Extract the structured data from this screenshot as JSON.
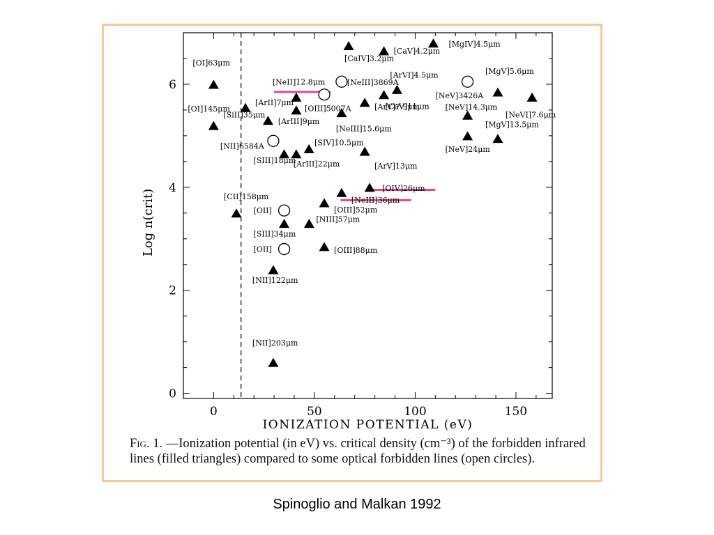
{
  "figure_label": "Fig. 1.",
  "caption": "—Ionization potential (in eV) vs. critical density (cm⁻³) of the forbidden infrared lines (filled triangles) compared to some optical forbidden lines (open circles).",
  "citation": "Spinoglio and Malkan 1992",
  "colors": {
    "frame": "#f5c99a",
    "highlight": "#e0498a",
    "marker": "#000000"
  },
  "chart_data": {
    "type": "scatter",
    "xlabel": "IONIZATION POTENTIAL (eV)",
    "ylabel": "Log n(crit)",
    "xlim": [
      -15,
      168
    ],
    "ylim": [
      -0.1,
      7.0
    ],
    "xticks": [
      0,
      50,
      100,
      150
    ],
    "yticks": [
      0,
      2,
      4,
      6
    ],
    "vline": 13.6,
    "series": [
      {
        "name": "filled triangles",
        "marker": "triangle",
        "points": [
          {
            "label": "[OI]63μm",
            "x": 0,
            "y": 6.0
          },
          {
            "label": "[OI]145μm",
            "x": 0,
            "y": 5.2
          },
          {
            "label": "[CII]158μm",
            "x": 11.3,
            "y": 3.5
          },
          {
            "label": "[ArII]7μm",
            "x": 15.8,
            "y": 5.55
          },
          {
            "label": "[SiII]35μm",
            "x": 27,
            "y": 5.3
          },
          {
            "label": "[NII]122μm",
            "x": 29.6,
            "y": 2.4
          },
          {
            "label": "[NII]203μm",
            "x": 29.6,
            "y": 0.6
          },
          {
            "label": "[SIII]34μm",
            "x": 35,
            "y": 3.3
          },
          {
            "label": "[SIII]18μm",
            "x": 35,
            "y": 4.65
          },
          {
            "label": "[NeII]12.8μm",
            "x": 41,
            "y": 5.75
          },
          {
            "label": "[ArIII]9μm",
            "x": 41,
            "y": 5.5
          },
          {
            "label": "[ArIII]22μm",
            "x": 41,
            "y": 4.65
          },
          {
            "label": "[NIII]57μm",
            "x": 47.4,
            "y": 3.3
          },
          {
            "label": "[SIV]10.5μm",
            "x": 47.3,
            "y": 4.75
          },
          {
            "label": "[OIII]52μm",
            "x": 54.9,
            "y": 3.7
          },
          {
            "label": "[OIII]88μm",
            "x": 54.9,
            "y": 2.85
          },
          {
            "label": "[NeIII]36μm",
            "x": 63.5,
            "y": 3.9
          },
          {
            "label": "[NeIII]15.6μm",
            "x": 63.5,
            "y": 5.45
          },
          {
            "label": "[CaIV]3.2μm",
            "x": 67,
            "y": 6.75
          },
          {
            "label": "[ArV]7.9μm",
            "x": 75,
            "y": 5.65
          },
          {
            "label": "[ArV]13μm",
            "x": 75,
            "y": 4.7
          },
          {
            "label": "[OIV]26μm",
            "x": 77.4,
            "y": 4.0
          },
          {
            "label": "[CaV]4.2μm",
            "x": 84.5,
            "y": 6.65
          },
          {
            "label": "[CaV]11μm",
            "x": 84.5,
            "y": 5.8
          },
          {
            "label": "[ArVI]4.5μm",
            "x": 91,
            "y": 5.9
          },
          {
            "label": "[MgIV]4.5μm",
            "x": 109,
            "y": 6.8
          },
          {
            "label": "[NeV]14.3μm",
            "x": 126,
            "y": 5.4
          },
          {
            "label": "[NeV]24μm",
            "x": 126,
            "y": 5.0
          },
          {
            "label": "[MgV]5.6μm",
            "x": 141,
            "y": 5.85
          },
          {
            "label": "[MgV]13.5μm",
            "x": 141,
            "y": 4.95
          },
          {
            "label": "[NeVI]7.6μm",
            "x": 158,
            "y": 5.75
          }
        ]
      },
      {
        "name": "open circles",
        "marker": "circle",
        "points": [
          {
            "label": "[NII]6584A",
            "x": 29.6,
            "y": 4.9
          },
          {
            "label": "[OII]",
            "x": 35,
            "y": 3.55
          },
          {
            "label": "[OII]",
            "x": 35,
            "y": 2.8
          },
          {
            "label": "[OIII]5007A",
            "x": 54.9,
            "y": 5.8
          },
          {
            "label": "[NeIII]3869A",
            "x": 63.5,
            "y": 6.05
          },
          {
            "label": "[NeV]3426A",
            "x": 126,
            "y": 6.05
          }
        ]
      }
    ],
    "highlights": [
      {
        "x1": 30,
        "x2": 58,
        "y": 5.85
      },
      {
        "x1": 76,
        "x2": 110,
        "y": 3.95
      },
      {
        "x1": 63,
        "x2": 98,
        "y": 3.75
      }
    ]
  }
}
